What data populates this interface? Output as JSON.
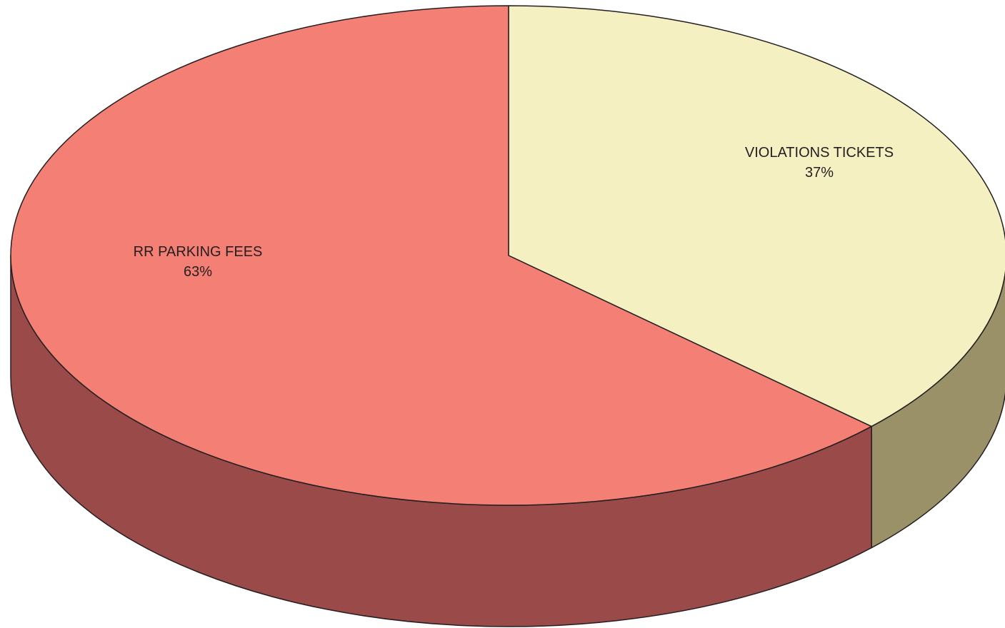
{
  "chart_data": {
    "type": "pie",
    "categories": [
      "VIOLATIONS TICKETS",
      "RR PARKING FEES"
    ],
    "values": [
      37,
      63
    ],
    "value_labels": [
      "37%",
      "63%"
    ],
    "colors": [
      "#f5f0c1",
      "#f37f75"
    ],
    "side_colors": [
      "#9a9168",
      "#9b4a4a"
    ]
  }
}
